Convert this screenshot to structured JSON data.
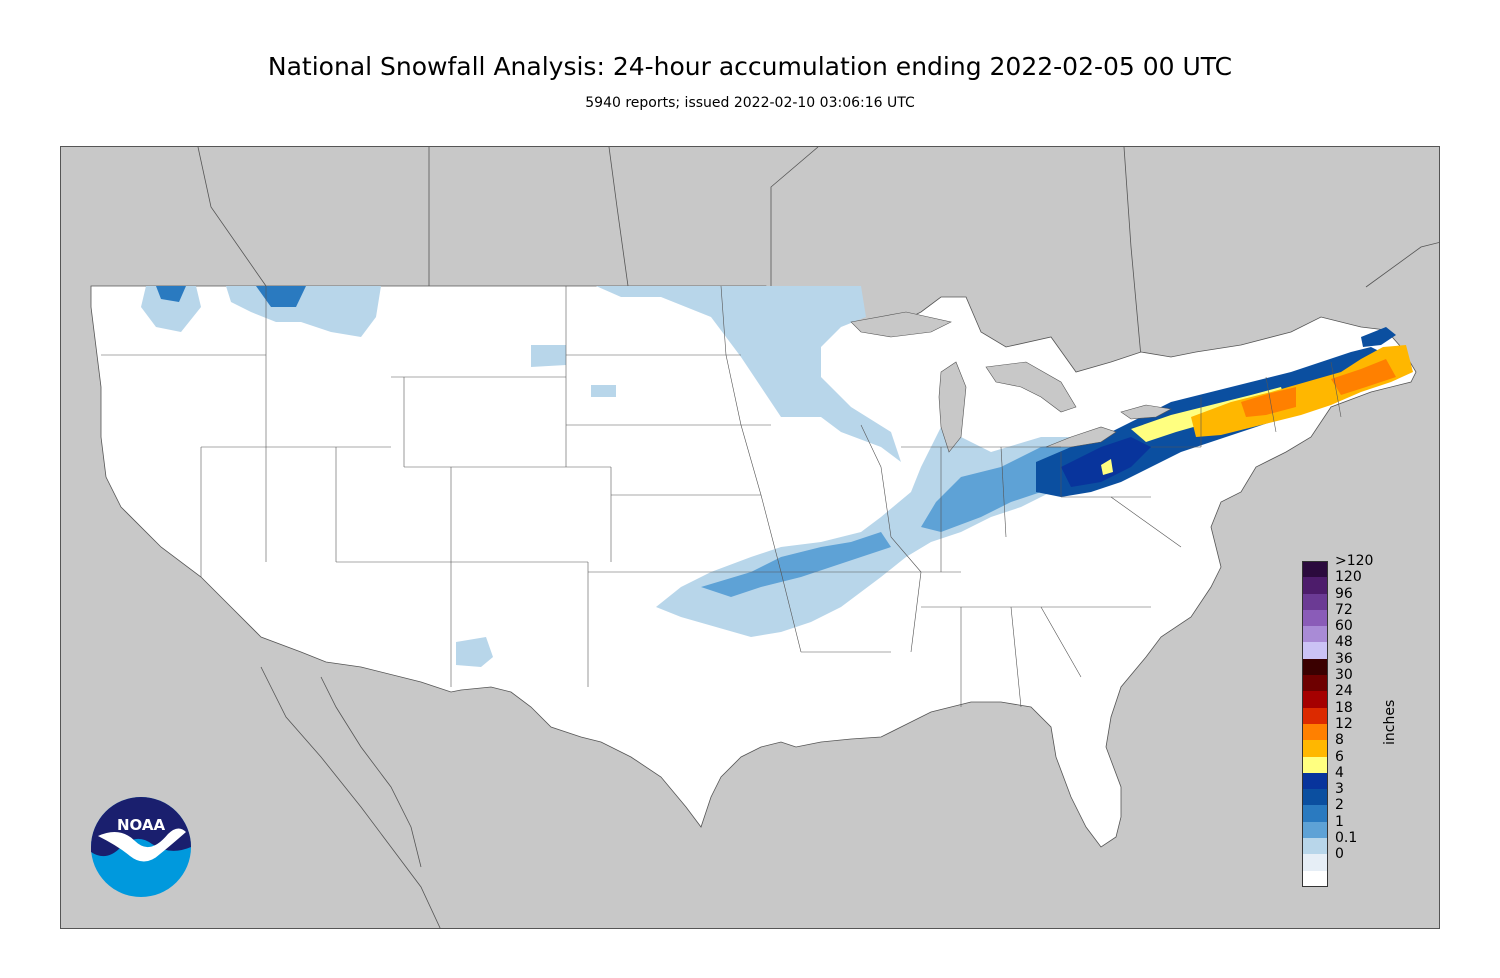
{
  "header": {
    "title": "National Snowfall Analysis: 24-hour accumulation ending 2022-02-05 00 UTC",
    "subtitle": "5940 reports; issued 2022-02-10 03:06:16 UTC"
  },
  "map": {
    "region": "Contiguous United States",
    "background_land_color": "#c8c8c8",
    "us_fill_color": "#ffffff",
    "logo": {
      "text": "NOAA",
      "icon": "noaa-logo-icon"
    }
  },
  "legend": {
    "unit": "inches",
    "labels": [
      ">120",
      "120",
      "96",
      "72",
      "60",
      "48",
      "36",
      "30",
      "24",
      "18",
      "12",
      "8",
      "6",
      "4",
      "3",
      "2",
      "1",
      "0.1",
      "0"
    ],
    "colors": [
      "#2b0a3d",
      "#4d1c6b",
      "#6b3a94",
      "#8a5cb8",
      "#a98bd6",
      "#cbc3f5",
      "#3a0000",
      "#6e0000",
      "#a50000",
      "#dc2a00",
      "#ff8000",
      "#ffb700",
      "#ffff80",
      "#08349c",
      "#0b4fa0",
      "#2a7ac0",
      "#5ea2d6",
      "#b8d6ea",
      "#e6eef6",
      "#ffffff"
    ]
  }
}
